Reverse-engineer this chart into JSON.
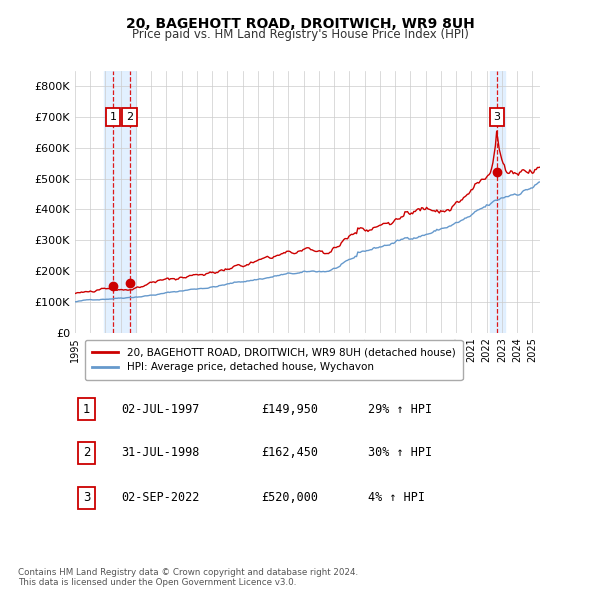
{
  "title": "20, BAGEHOTT ROAD, DROITWICH, WR9 8UH",
  "subtitle": "Price paid vs. HM Land Registry's House Price Index (HPI)",
  "xlim": [
    1995.0,
    2025.5
  ],
  "ylim": [
    0,
    850000
  ],
  "yticks": [
    0,
    100000,
    200000,
    300000,
    400000,
    500000,
    600000,
    700000,
    800000
  ],
  "ytick_labels": [
    "£0",
    "£100K",
    "£200K",
    "£300K",
    "£400K",
    "£500K",
    "£600K",
    "£700K",
    "£800K"
  ],
  "xtick_years": [
    1995,
    1996,
    1997,
    1998,
    1999,
    2000,
    2001,
    2002,
    2003,
    2004,
    2005,
    2006,
    2007,
    2008,
    2009,
    2010,
    2011,
    2012,
    2013,
    2014,
    2015,
    2016,
    2017,
    2018,
    2019,
    2020,
    2021,
    2022,
    2023,
    2024,
    2025
  ],
  "sale_color": "#cc0000",
  "hpi_color": "#6699cc",
  "sale_points": [
    {
      "date": 1997.5,
      "value": 149950,
      "label": "1"
    },
    {
      "date": 1998.58,
      "value": 162450,
      "label": "2"
    },
    {
      "date": 2022.67,
      "value": 520000,
      "label": "3"
    }
  ],
  "vline_color": "#dd0000",
  "highlight_color": "#ddeeff",
  "legend_label_red": "20, BAGEHOTT ROAD, DROITWICH, WR9 8UH (detached house)",
  "legend_label_blue": "HPI: Average price, detached house, Wychavon",
  "table_rows": [
    {
      "num": "1",
      "date": "02-JUL-1997",
      "price": "£149,950",
      "hpi": "29% ↑ HPI"
    },
    {
      "num": "2",
      "date": "31-JUL-1998",
      "price": "£162,450",
      "hpi": "30% ↑ HPI"
    },
    {
      "num": "3",
      "date": "02-SEP-2022",
      "price": "£520,000",
      "hpi": "4% ↑ HPI"
    }
  ],
  "footer": "Contains HM Land Registry data © Crown copyright and database right 2024.\nThis data is licensed under the Open Government Licence v3.0.",
  "background_color": "#ffffff",
  "grid_color": "#cccccc"
}
